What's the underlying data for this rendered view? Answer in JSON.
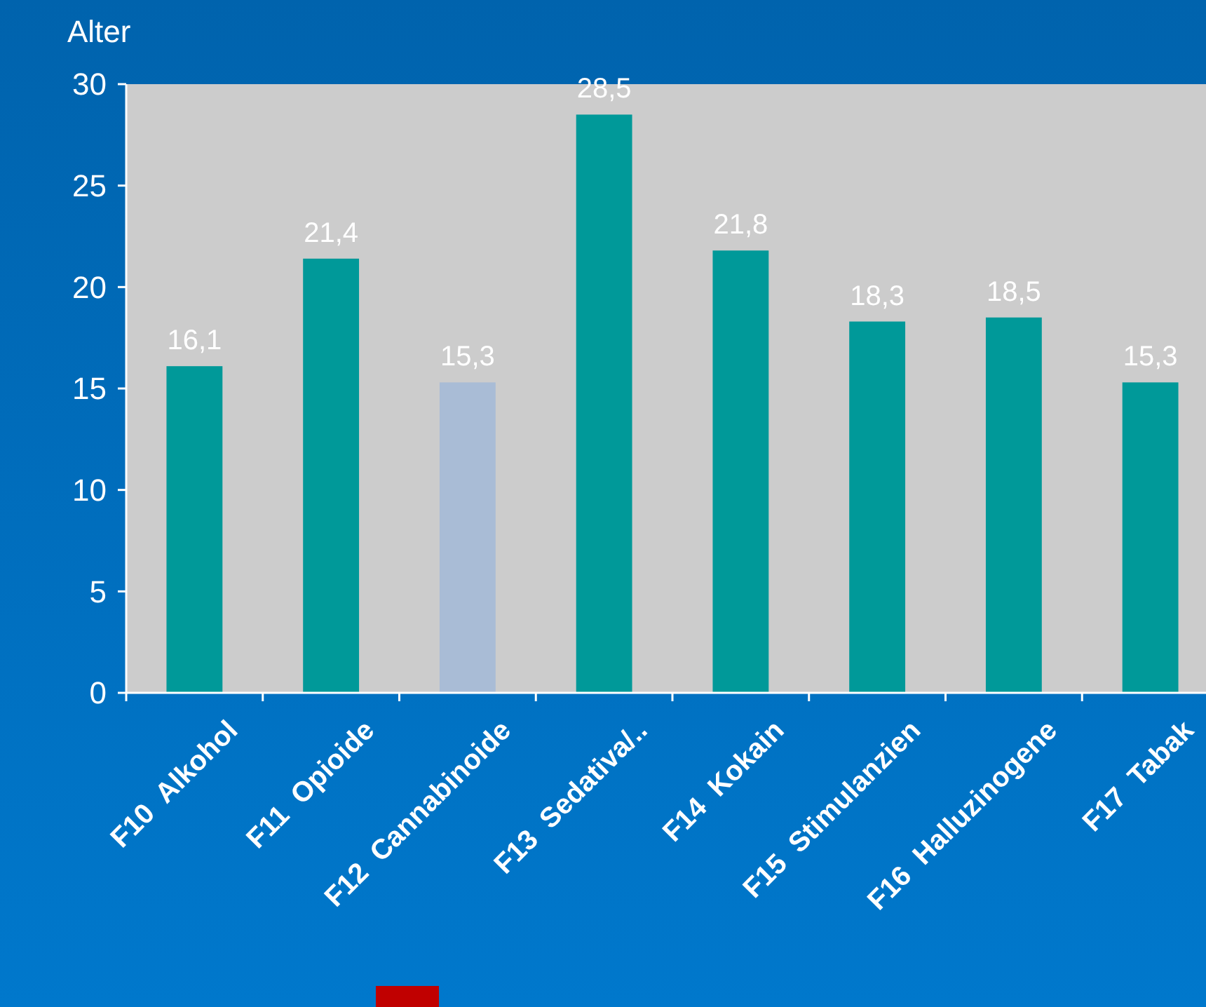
{
  "chart_data": {
    "type": "bar",
    "ylabel": "Alter",
    "categories": [
      "F10  Alkohol",
      "F11  Opioide",
      "F12  Cannabinoide",
      "F13  Sedativa/..",
      "F14  Kokain",
      "F15  Stimulanzien",
      "F16  Halluzinogene",
      "F17  Tabak"
    ],
    "values": [
      16.1,
      21.4,
      15.3,
      28.5,
      21.8,
      18.3,
      18.5,
      15.3
    ],
    "colors": [
      "#009999",
      "#009999",
      "#a9bcd6",
      "#009999",
      "#009999",
      "#009999",
      "#009999",
      "#009999"
    ],
    "value_labels": [
      "16,1",
      "21,4",
      "15,3",
      "28,5",
      "21,8",
      "18,3",
      "18,5",
      "15,3"
    ],
    "ylim": [
      0,
      30
    ],
    "yticks": [
      0,
      5,
      10,
      15,
      20,
      25,
      30
    ]
  }
}
